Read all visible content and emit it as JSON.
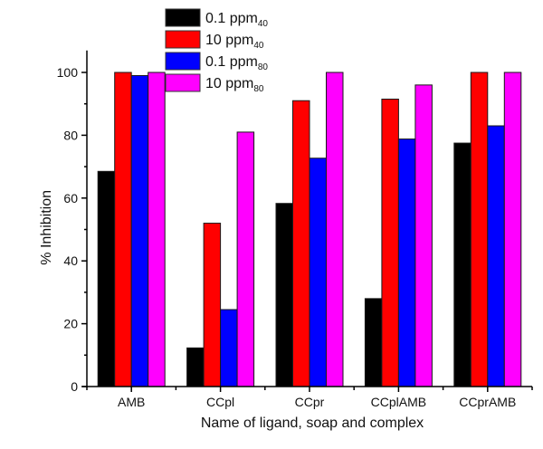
{
  "chart_data": {
    "type": "bar",
    "title": "",
    "xlabel": "Name of ligand, soap and complex",
    "ylabel": "% Inhibition",
    "ylim": [
      0,
      107
    ],
    "yticks": [
      0,
      20,
      40,
      60,
      80,
      100
    ],
    "ytick_labels": [
      "0",
      "20",
      "40",
      "60",
      "80",
      "100"
    ],
    "yminor_ticks": [
      10,
      30,
      50,
      70,
      90
    ],
    "grid": false,
    "legend_position": "top-center",
    "categories": [
      "AMB",
      "CCpl",
      "CCpr",
      "CCplAMB",
      "CCprAMB"
    ],
    "series": [
      {
        "name": "0.1 ppm",
        "subscript": "40",
        "color": "#000000",
        "values": [
          68.5,
          12.3,
          58.3,
          28.0,
          77.5
        ]
      },
      {
        "name": "10 ppm",
        "subscript": "40",
        "color": "#ff0000",
        "values": [
          100,
          52.0,
          91.0,
          91.5,
          100
        ]
      },
      {
        "name": "0.1 ppm",
        "subscript": "80",
        "color": "#0000ff",
        "values": [
          99.0,
          24.5,
          72.7,
          78.8,
          83.0
        ]
      },
      {
        "name": "10 ppm",
        "subscript": "80",
        "color": "#ff00ff",
        "values": [
          100,
          81.0,
          100,
          96.0,
          100
        ]
      }
    ]
  }
}
